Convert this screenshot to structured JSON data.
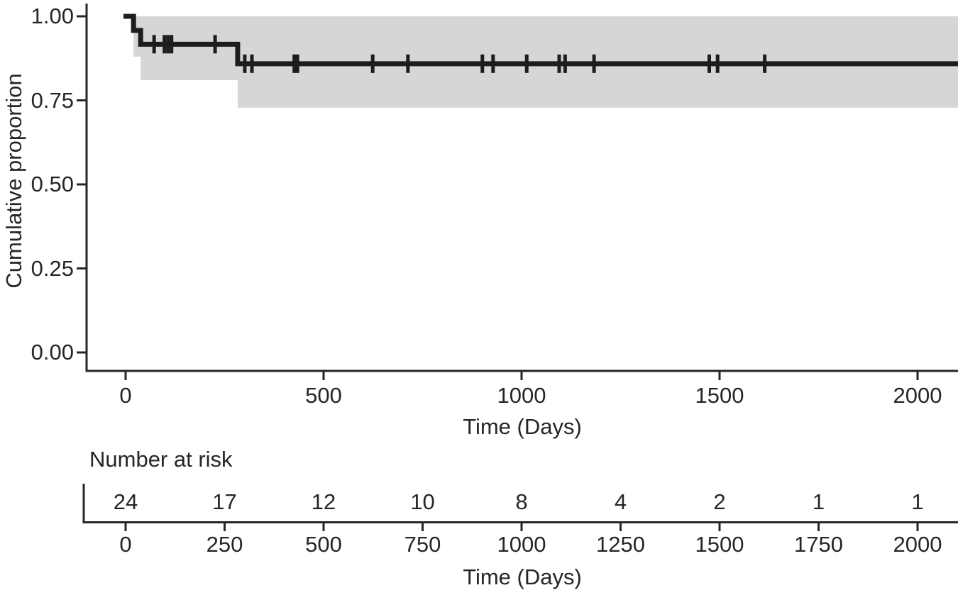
{
  "colors": {
    "curve": "#1d1d1d",
    "confidence_band": "#d6d6d6",
    "axis": "#262626",
    "text": "#262626",
    "background": "#ffffff"
  },
  "chart_data": {
    "type": "line",
    "subtype": "kaplan_meier_step",
    "title": "",
    "xlabel": "Time (Days)",
    "ylabel": "Cumulative proportion",
    "xlim": [
      0,
      2100
    ],
    "ylim": [
      0.0,
      1.0
    ],
    "x_ticks": [
      0,
      500,
      1000,
      1500,
      2000
    ],
    "y_ticks": [
      0.0,
      0.25,
      0.5,
      0.75,
      1.0
    ],
    "y_tick_decimals": 2,
    "grid": false,
    "legend": false,
    "series": [
      {
        "name": "cumulative-proportion",
        "color": "#1d1d1d",
        "steps": [
          {
            "x": 0,
            "y": 1.0
          },
          {
            "x": 20,
            "y": 0.958
          },
          {
            "x": 38,
            "y": 0.917
          },
          {
            "x": 283,
            "y": 0.859
          }
        ],
        "end_x": 2100,
        "censor_marks": [
          {
            "x": 72,
            "y": 0.917
          },
          {
            "x": 98,
            "y": 0.917
          },
          {
            "x": 107,
            "y": 0.917
          },
          {
            "x": 116,
            "y": 0.917
          },
          {
            "x": 226,
            "y": 0.917
          },
          {
            "x": 301,
            "y": 0.859
          },
          {
            "x": 319,
            "y": 0.859
          },
          {
            "x": 426,
            "y": 0.859
          },
          {
            "x": 434,
            "y": 0.859
          },
          {
            "x": 624,
            "y": 0.859
          },
          {
            "x": 713,
            "y": 0.859
          },
          {
            "x": 901,
            "y": 0.859
          },
          {
            "x": 928,
            "y": 0.859
          },
          {
            "x": 1013,
            "y": 0.859
          },
          {
            "x": 1095,
            "y": 0.859
          },
          {
            "x": 1110,
            "y": 0.859
          },
          {
            "x": 1183,
            "y": 0.859
          },
          {
            "x": 1474,
            "y": 0.859
          },
          {
            "x": 1495,
            "y": 0.859
          },
          {
            "x": 1614,
            "y": 0.859
          }
        ],
        "confidence_band": {
          "color": "#d6d6d6",
          "start_x": 20,
          "end_x": 2100,
          "upper_steps": [
            {
              "x": 20,
              "y": 1.0
            }
          ],
          "lower_steps": [
            {
              "x": 20,
              "y": 0.88
            },
            {
              "x": 38,
              "y": 0.81
            },
            {
              "x": 283,
              "y": 0.728
            }
          ]
        }
      }
    ],
    "risk_table": {
      "title": "Number at risk",
      "xlabel": "Time (Days)",
      "x_ticks": [
        0,
        250,
        500,
        750,
        1000,
        1250,
        1500,
        1750,
        2000
      ],
      "counts": [
        24,
        17,
        12,
        10,
        8,
        4,
        2,
        1,
        1
      ]
    }
  }
}
